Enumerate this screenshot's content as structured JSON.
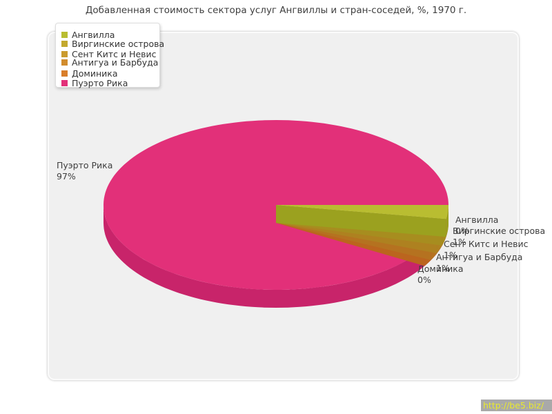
{
  "watermark": {
    "text": "http://be5.biz/",
    "bar_color": "#a9a9a9",
    "text_color": "#e9e92e"
  },
  "chart_data": {
    "type": "pie",
    "title": "Добавленная стоимость сектора услуг Ангвиллы и стран-соседей, %, 1970 г.",
    "legend_position": "top-left",
    "style": "3d-pie",
    "series": [
      {
        "name": "Ангвилла",
        "value": 0,
        "label": "0%",
        "color": "#b9bd31",
        "side_color": "#9ba11f"
      },
      {
        "name": "Виргинские острова",
        "value": 1,
        "label": "1%",
        "color": "#c3a92e",
        "side_color": "#a78d1f"
      },
      {
        "name": "Сент Китс и Невис",
        "value": 1,
        "label": "1%",
        "color": "#ca9b2e",
        "side_color": "#ae8120"
      },
      {
        "name": "Антигуа и Барбуда",
        "value": 1,
        "label": "1%",
        "color": "#d18c2d",
        "side_color": "#b57220"
      },
      {
        "name": "Доминика",
        "value": 0,
        "label": "0%",
        "color": "#d87e2a",
        "side_color": "#bb651e"
      },
      {
        "name": "Пуэрто Рика",
        "value": 97,
        "label": "97%",
        "color": "#e23079",
        "side_color": "#c8246a"
      }
    ]
  }
}
